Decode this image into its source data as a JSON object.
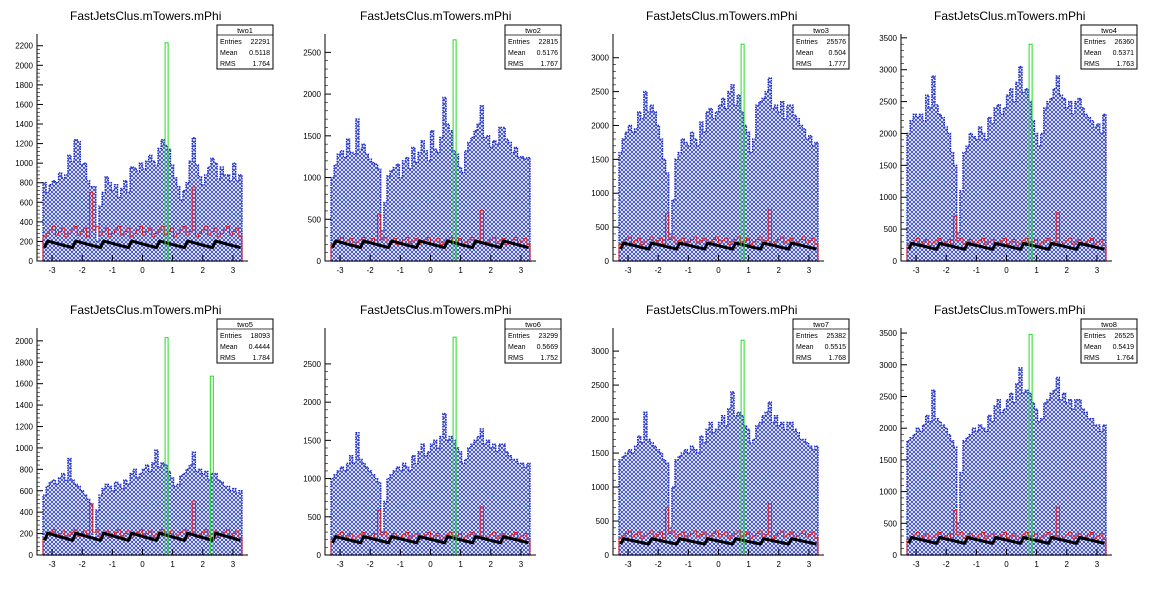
{
  "chart_data": [
    {
      "type": "bar",
      "title": "FastJetsClus.mTowers.mPhi",
      "stats": {
        "name": "two1",
        "entries_label": "Entries",
        "entries": "22291",
        "mean_label": "Mean",
        "mean": "0.5118",
        "rms_label": "RMS",
        "rms": "1.764"
      },
      "xlim": [
        -3.5,
        3.5
      ],
      "ylim": [
        0,
        2320
      ],
      "yticks": [
        0,
        200,
        400,
        600,
        800,
        1000,
        1200,
        1400,
        1600,
        1800,
        2000,
        2200
      ],
      "xticks": [
        -3,
        -2,
        -1,
        0,
        1,
        2,
        3
      ],
      "spikes": [
        {
          "x": 0.8,
          "value": 2230
        }
      ],
      "blue": [
        800,
        700,
        780,
        820,
        800,
        900,
        850,
        880,
        1080,
        1020,
        1240,
        1220,
        980,
        1000,
        820,
        760,
        760,
        200,
        560,
        700,
        860,
        800,
        720,
        780,
        650,
        740,
        820,
        700,
        960,
        950,
        920,
        1000,
        940,
        1020,
        1080,
        1020,
        980,
        1150,
        1240,
        1180,
        1140,
        980,
        850,
        760,
        620,
        720,
        800,
        1020,
        1260,
        980,
        860,
        780,
        880,
        960,
        1050,
        1000,
        840,
        960,
        880,
        880,
        820,
        1000,
        820,
        880
      ],
      "red_level": 300,
      "black_level": 170
    },
    {
      "type": "bar",
      "title": "FastJetsClus.mTowers.mPhi",
      "stats": {
        "name": "two2",
        "entries_label": "Entries",
        "entries": "22815",
        "mean_label": "Mean",
        "mean": "0.5176",
        "rms_label": "RMS",
        "rms": "1.767"
      },
      "xlim": [
        -3.5,
        3.5
      ],
      "ylim": [
        0,
        2720
      ],
      "yticks": [
        0,
        500,
        1000,
        1500,
        2000,
        2500
      ],
      "xticks": [
        -3,
        -2,
        -1,
        0,
        1,
        2,
        3
      ],
      "spikes": [
        {
          "x": 0.8,
          "value": 2650
        }
      ],
      "blue": [
        1000,
        1150,
        1280,
        1320,
        1240,
        1460,
        1300,
        1280,
        1700,
        1340,
        1400,
        1280,
        1220,
        1180,
        1160,
        1100,
        360,
        700,
        1020,
        1080,
        1120,
        1160,
        1000,
        1200,
        1240,
        1100,
        1360,
        1180,
        1300,
        1440,
        1320,
        1200,
        1560,
        1340,
        1300,
        1480,
        1960,
        1640,
        1560,
        1320,
        1280,
        1120,
        1060,
        1320,
        1420,
        1480,
        1560,
        1640,
        1860,
        1480,
        1500,
        1360,
        1440,
        1400,
        1600,
        1600,
        1460,
        1420,
        1300,
        1360,
        1240,
        1250,
        1220,
        1240
      ],
      "red_level": 240,
      "black_level": 200
    },
    {
      "type": "bar",
      "title": "FastJetsClus.mTowers.mPhi",
      "stats": {
        "name": "two3",
        "entries_label": "Entries",
        "entries": "25576",
        "mean_label": "Mean",
        "mean": "0.504",
        "rms_label": "RMS",
        "rms": "1.777"
      },
      "xlim": [
        -3.5,
        3.5
      ],
      "ylim": [
        0,
        3350
      ],
      "yticks": [
        0,
        500,
        1000,
        1500,
        2000,
        2500,
        3000
      ],
      "xticks": [
        -3,
        -2,
        -1,
        0,
        1,
        2,
        3
      ],
      "spikes": [
        {
          "x": 0.8,
          "value": 3200
        }
      ],
      "blue": [
        1600,
        1800,
        1900,
        2000,
        1900,
        1950,
        2200,
        2100,
        2500,
        2200,
        2300,
        2200,
        2000,
        1800,
        1500,
        1300,
        400,
        900,
        1500,
        1600,
        1800,
        1750,
        1700,
        1900,
        1800,
        1700,
        2050,
        1900,
        2200,
        2250,
        2100,
        2200,
        2300,
        2400,
        2250,
        2500,
        2600,
        2300,
        2450,
        2200,
        2000,
        1900,
        1600,
        1800,
        2300,
        2350,
        2400,
        2500,
        2700,
        2250,
        2300,
        2200,
        2350,
        2100,
        2300,
        2300,
        2150,
        2100,
        2000,
        1950,
        1800,
        1850,
        1700,
        1750
      ],
      "red_level": 300,
      "black_level": 220
    },
    {
      "type": "bar",
      "title": "FastJetsClus.mTowers.mPhi",
      "stats": {
        "name": "two4",
        "entries_label": "Entries",
        "entries": "26360",
        "mean_label": "Mean",
        "mean": "0.5371",
        "rms_label": "RMS",
        "rms": "1.763"
      },
      "xlim": [
        -3.5,
        3.5
      ],
      "ylim": [
        0,
        3560
      ],
      "yticks": [
        0,
        500,
        1000,
        1500,
        2000,
        2500,
        3000,
        3500
      ],
      "xticks": [
        -3,
        -2,
        -1,
        0,
        1,
        2,
        3
      ],
      "spikes": [
        {
          "x": 0.8,
          "value": 3400
        }
      ],
      "blue": [
        2000,
        2200,
        2300,
        2250,
        2300,
        2200,
        2600,
        2400,
        2900,
        2450,
        2300,
        2250,
        2100,
        2000,
        1700,
        1500,
        450,
        1100,
        1700,
        1800,
        2000,
        1950,
        1900,
        2100,
        2000,
        1900,
        2250,
        2150,
        2400,
        2450,
        2300,
        2400,
        2600,
        2700,
        2500,
        2800,
        3050,
        2650,
        2700,
        2500,
        2200,
        2000,
        1800,
        2000,
        2400,
        2500,
        2550,
        2700,
        2900,
        2600,
        2550,
        2400,
        2500,
        2300,
        2500,
        2550,
        2400,
        2300,
        2250,
        2200,
        2100,
        2150,
        2000,
        2300
      ],
      "red_level": 300,
      "black_level": 230
    },
    {
      "type": "bar",
      "title": "FastJetsClus.mTowers.mPhi",
      "stats": {
        "name": "two5",
        "entries_label": "Entries",
        "entries": "18093",
        "mean_label": "Mean",
        "mean": "0.4444",
        "rms_label": "RMS",
        "rms": "1.784"
      },
      "xlim": [
        -3.5,
        3.5
      ],
      "ylim": [
        0,
        2120
      ],
      "yticks": [
        0,
        200,
        400,
        600,
        800,
        1000,
        1200,
        1400,
        1600,
        1800,
        2000
      ],
      "xticks": [
        -3,
        -2,
        -1,
        0,
        1,
        2,
        3
      ],
      "spikes": [
        {
          "x": 0.8,
          "value": 2030
        },
        {
          "x": 2.3,
          "value": 1670
        }
      ],
      "blue": [
        560,
        640,
        680,
        700,
        660,
        720,
        760,
        700,
        900,
        700,
        660,
        640,
        600,
        560,
        520,
        480,
        160,
        420,
        560,
        620,
        660,
        640,
        600,
        680,
        660,
        620,
        700,
        660,
        760,
        800,
        720,
        760,
        800,
        840,
        780,
        860,
        980,
        820,
        860,
        840,
        780,
        720,
        640,
        660,
        740,
        760,
        800,
        840,
        960,
        780,
        800,
        760,
        780,
        700,
        760,
        760,
        700,
        680,
        640,
        640,
        600,
        620,
        580,
        600
      ],
      "red_level": 200,
      "black_level": 170
    },
    {
      "type": "bar",
      "title": "FastJetsClus.mTowers.mPhi",
      "stats": {
        "name": "two6",
        "entries_label": "Entries",
        "entries": "23299",
        "mean_label": "Mean",
        "mean": "0.5669",
        "rms_label": "RMS",
        "rms": "1.752"
      },
      "xlim": [
        -3.5,
        3.5
      ],
      "ylim": [
        0,
        2970
      ],
      "yticks": [
        0,
        500,
        1000,
        1500,
        2000,
        2500
      ],
      "xticks": [
        -3,
        -2,
        -1,
        0,
        1,
        2,
        3
      ],
      "spikes": [
        {
          "x": 0.8,
          "value": 2850
        }
      ],
      "blue": [
        1000,
        1050,
        1100,
        1150,
        1100,
        1200,
        1300,
        1200,
        1600,
        1250,
        1200,
        1150,
        1100,
        1050,
        1000,
        950,
        300,
        700,
        1000,
        1050,
        1100,
        1150,
        1100,
        1200,
        1150,
        1100,
        1300,
        1200,
        1350,
        1450,
        1300,
        1350,
        1450,
        1500,
        1400,
        1550,
        1850,
        1500,
        1550,
        1500,
        1400,
        1350,
        1200,
        1250,
        1400,
        1450,
        1500,
        1550,
        1650,
        1450,
        1500,
        1400,
        1450,
        1350,
        1450,
        1450,
        1350,
        1300,
        1250,
        1250,
        1200,
        1200,
        1150,
        1200
      ],
      "red_level": 250,
      "black_level": 200
    },
    {
      "type": "bar",
      "title": "FastJetsClus.mTowers.mPhi",
      "stats": {
        "name": "two7",
        "entries_label": "Entries",
        "entries": "25382",
        "mean_label": "Mean",
        "mean": "0.5515",
        "rms_label": "RMS",
        "rms": "1.768"
      },
      "xlim": [
        -3.5,
        3.5
      ],
      "ylim": [
        0,
        3340
      ],
      "yticks": [
        0,
        500,
        1000,
        1500,
        2000,
        2500,
        3000
      ],
      "xticks": [
        -3,
        -2,
        -1,
        0,
        1,
        2,
        3
      ],
      "spikes": [
        {
          "x": 0.8,
          "value": 3160
        }
      ],
      "blue": [
        1400,
        1450,
        1500,
        1550,
        1500,
        1600,
        1750,
        1650,
        2100,
        1700,
        1650,
        1600,
        1550,
        1500,
        1400,
        1350,
        400,
        1000,
        1400,
        1450,
        1500,
        1550,
        1500,
        1600,
        1550,
        1500,
        1750,
        1650,
        1850,
        1950,
        1800,
        1850,
        1950,
        2050,
        1900,
        2150,
        2400,
        2050,
        2100,
        2050,
        1900,
        1850,
        1650,
        1700,
        1900,
        1950,
        2050,
        2100,
        2250,
        1950,
        2050,
        1900,
        1950,
        1850,
        1950,
        1950,
        1850,
        1800,
        1700,
        1700,
        1650,
        1600,
        1550,
        1600
      ],
      "red_level": 300,
      "black_level": 200
    },
    {
      "type": "bar",
      "title": "FastJetsClus.mTowers.mPhi",
      "stats": {
        "name": "two8",
        "entries_label": "Entries",
        "entries": "26525",
        "mean_label": "Mean",
        "mean": "0.5419",
        "rms_label": "RMS",
        "rms": "1.764"
      },
      "xlim": [
        -3.5,
        3.5
      ],
      "ylim": [
        0,
        3580
      ],
      "yticks": [
        0,
        500,
        1000,
        1500,
        2000,
        2500,
        3000,
        3500
      ],
      "xticks": [
        -3,
        -2,
        -1,
        0,
        1,
        2,
        3
      ],
      "spikes": [
        {
          "x": 0.8,
          "value": 3480
        }
      ],
      "blue": [
        1800,
        1850,
        1900,
        2000,
        1950,
        2050,
        2200,
        2100,
        2600,
        2150,
        2100,
        2050,
        2000,
        1900,
        1800,
        1700,
        500,
        1300,
        1800,
        1850,
        1900,
        2000,
        1950,
        2050,
        2000,
        1950,
        2200,
        2100,
        2350,
        2450,
        2250,
        2300,
        2450,
        2550,
        2400,
        2700,
        2950,
        2550,
        2600,
        2550,
        2400,
        2300,
        2100,
        2150,
        2400,
        2450,
        2550,
        2600,
        2800,
        2450,
        2550,
        2400,
        2450,
        2300,
        2450,
        2450,
        2300,
        2250,
        2150,
        2150,
        2050,
        2050,
        1950,
        2050
      ],
      "red_level": 300,
      "black_level": 230
    }
  ]
}
